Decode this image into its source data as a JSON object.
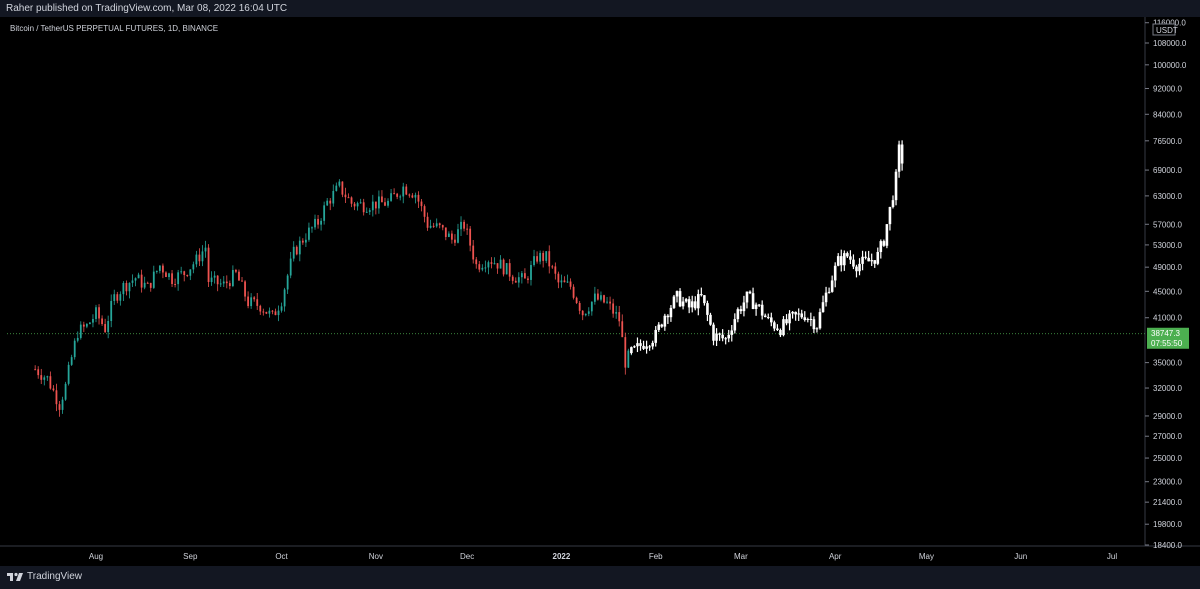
{
  "header": {
    "published": "Raher published on TradingView.com, Mar 08, 2022 16:04 UTC"
  },
  "symbol": {
    "title": "Bitcoin / TetherUS PERPETUAL FUTURES, 1D, BINANCE"
  },
  "footer": {
    "brand": "TradingView"
  },
  "colors": {
    "up": "#26a69a",
    "down": "#ef5350",
    "projection": "#ffffff",
    "price_label_bg": "#4caf50",
    "grid_axis": "#363a45"
  },
  "chart_data": {
    "type": "candlestick",
    "title": "Bitcoin / TetherUS PERPETUAL FUTURES, 1D, BINANCE",
    "y_scale": "log",
    "ylim": [
      17800,
      117000
    ],
    "currency": "USDT",
    "y_ticks": [
      18400,
      19800,
      21400,
      23000,
      25000,
      27000,
      29000,
      32000,
      35000,
      41000,
      45000,
      49000,
      53000,
      57000,
      63000,
      69000,
      76500,
      84000,
      92000,
      100000,
      108000,
      116000
    ],
    "x_ticks": [
      "Aug",
      "Sep",
      "Oct",
      "Nov",
      "Dec",
      "2022",
      "Feb",
      "Mar",
      "Apr",
      "May",
      "Jun",
      "Jul"
    ],
    "last_price": {
      "value": "38747.3",
      "countdown": "07:55:50",
      "y": 38747.3
    },
    "series": [
      {
        "name": "price",
        "points": [
          [
            "Jul 12",
            34200
          ],
          [
            "Jul 16",
            33100
          ],
          [
            "Jul 20",
            30200
          ],
          [
            "Jul 22",
            32200
          ],
          [
            "Jul 26",
            39000
          ],
          [
            "Jul 29",
            39800
          ],
          [
            "Aug 1",
            41600
          ],
          [
            "Aug 4",
            39500
          ],
          [
            "Aug 7",
            44000
          ],
          [
            "Aug 10",
            45800
          ],
          [
            "Aug 14",
            47200
          ],
          [
            "Aug 18",
            45600
          ],
          [
            "Aug 22",
            49300
          ],
          [
            "Aug 26",
            47100
          ],
          [
            "Aug 30",
            48000
          ],
          [
            "Sep 3",
            50200
          ],
          [
            "Sep 6",
            52600
          ],
          [
            "Sep 7",
            46700
          ],
          [
            "Sep 12",
            46000
          ],
          [
            "Sep 16",
            47800
          ],
          [
            "Sep 20",
            43300
          ],
          [
            "Sep 24",
            42800
          ],
          [
            "Sep 28",
            41100
          ],
          [
            "Oct 1",
            43700
          ],
          [
            "Oct 5",
            51500
          ],
          [
            "Oct 9",
            54900
          ],
          [
            "Oct 13",
            57400
          ],
          [
            "Oct 16",
            61600
          ],
          [
            "Oct 20",
            65000
          ],
          [
            "Oct 24",
            61400
          ],
          [
            "Oct 28",
            61000
          ],
          [
            "Nov 1",
            61300
          ],
          [
            "Nov 5",
            61500
          ],
          [
            "Nov 10",
            65000
          ],
          [
            "Nov 14",
            63500
          ],
          [
            "Nov 18",
            57000
          ],
          [
            "Nov 22",
            56200
          ],
          [
            "Nov 26",
            54000
          ],
          [
            "Nov 30",
            56900
          ],
          [
            "Dec 4",
            49300
          ],
          [
            "Dec 8",
            50500
          ],
          [
            "Dec 12",
            49400
          ],
          [
            "Dec 16",
            47600
          ],
          [
            "Dec 20",
            46700
          ],
          [
            "Dec 24",
            50800
          ],
          [
            "Dec 27",
            50700
          ],
          [
            "Dec 31",
            46300
          ],
          [
            "Jan 4",
            45800
          ],
          [
            "Jan 8",
            41700
          ],
          [
            "Jan 12",
            43900
          ],
          [
            "Jan 16",
            43100
          ],
          [
            "Jan 20",
            40700
          ],
          [
            "Jan 22",
            35100
          ],
          [
            "Jan 24",
            36200
          ]
        ]
      },
      {
        "name": "projection",
        "points": [
          [
            "Jan 24",
            36200
          ],
          [
            "Jan 28",
            37500
          ],
          [
            "Feb 1",
            38500
          ],
          [
            "Feb 4",
            41500
          ],
          [
            "Feb 8",
            44000
          ],
          [
            "Feb 12",
            42500
          ],
          [
            "Feb 16",
            44000
          ],
          [
            "Feb 20",
            38500
          ],
          [
            "Feb 24",
            38000
          ],
          [
            "Feb 28",
            42000
          ],
          [
            "Mar 3",
            44000
          ],
          [
            "Mar 6",
            43000
          ],
          [
            "Mar 10",
            40500
          ],
          [
            "Mar 14",
            39500
          ],
          [
            "Mar 18",
            41000
          ],
          [
            "Mar 22",
            41500
          ],
          [
            "Mar 26",
            40000
          ],
          [
            "Mar 30",
            46000
          ],
          [
            "Apr 2",
            50000
          ],
          [
            "Apr 5",
            51000
          ],
          [
            "Apr 8",
            49500
          ],
          [
            "Apr 12",
            50000
          ],
          [
            "Apr 15",
            51000
          ],
          [
            "Apr 17",
            54000
          ],
          [
            "Apr 19",
            60000
          ],
          [
            "Apr 21",
            67000
          ],
          [
            "Apr 22",
            74000
          ],
          [
            "Apr 23",
            71500
          ]
        ]
      }
    ]
  }
}
